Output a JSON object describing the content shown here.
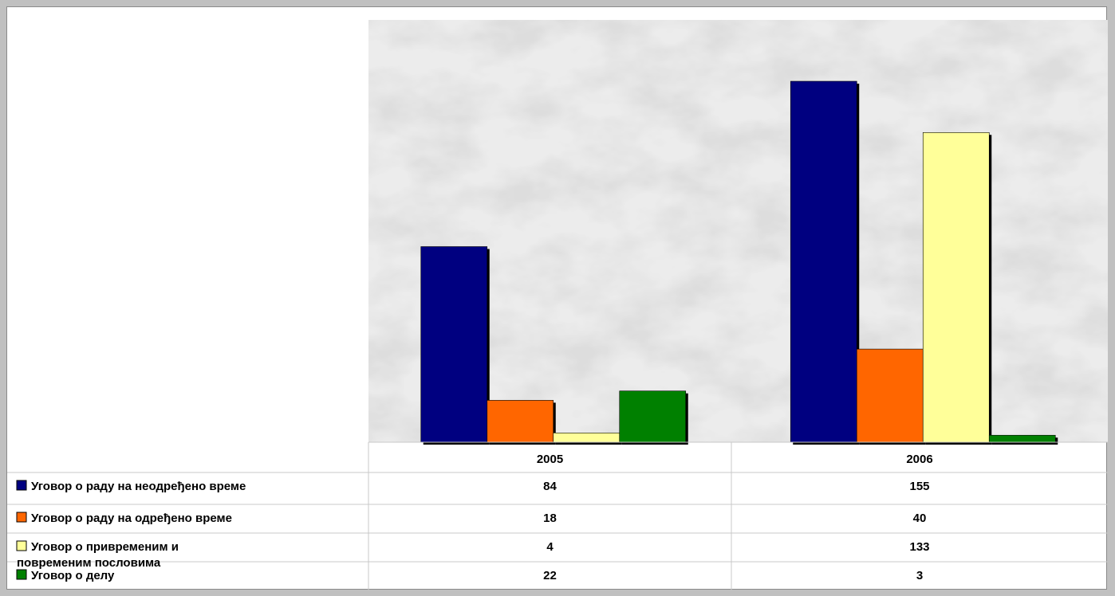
{
  "chart_data": {
    "type": "bar",
    "title": "",
    "xlabel": "",
    "ylabel": "",
    "categories": [
      "2005",
      "2006"
    ],
    "ylim": [
      0,
      160
    ],
    "grid": false,
    "legend": "table-left",
    "series": [
      {
        "name": "Уговор о раду на неодређено време",
        "values": [
          84,
          155
        ],
        "color": "#000080",
        "label_lines": [
          "Уговор о раду на неодређено време"
        ]
      },
      {
        "name": "Уговор о раду на одређено време",
        "values": [
          18,
          40
        ],
        "color": "#ff6600",
        "label_lines": [
          "Уговор о раду на одређено време"
        ]
      },
      {
        "name": "Уговор о привременим и повременим пословима",
        "values": [
          4,
          133
        ],
        "color": "#ffff99",
        "label_lines": [
          "Уговор о привременим и",
          "повременим пословима"
        ]
      },
      {
        "name": "Уговор о делу",
        "values": [
          22,
          3
        ],
        "color": "#008000",
        "label_lines": [
          "Уговор о делу"
        ]
      }
    ]
  }
}
